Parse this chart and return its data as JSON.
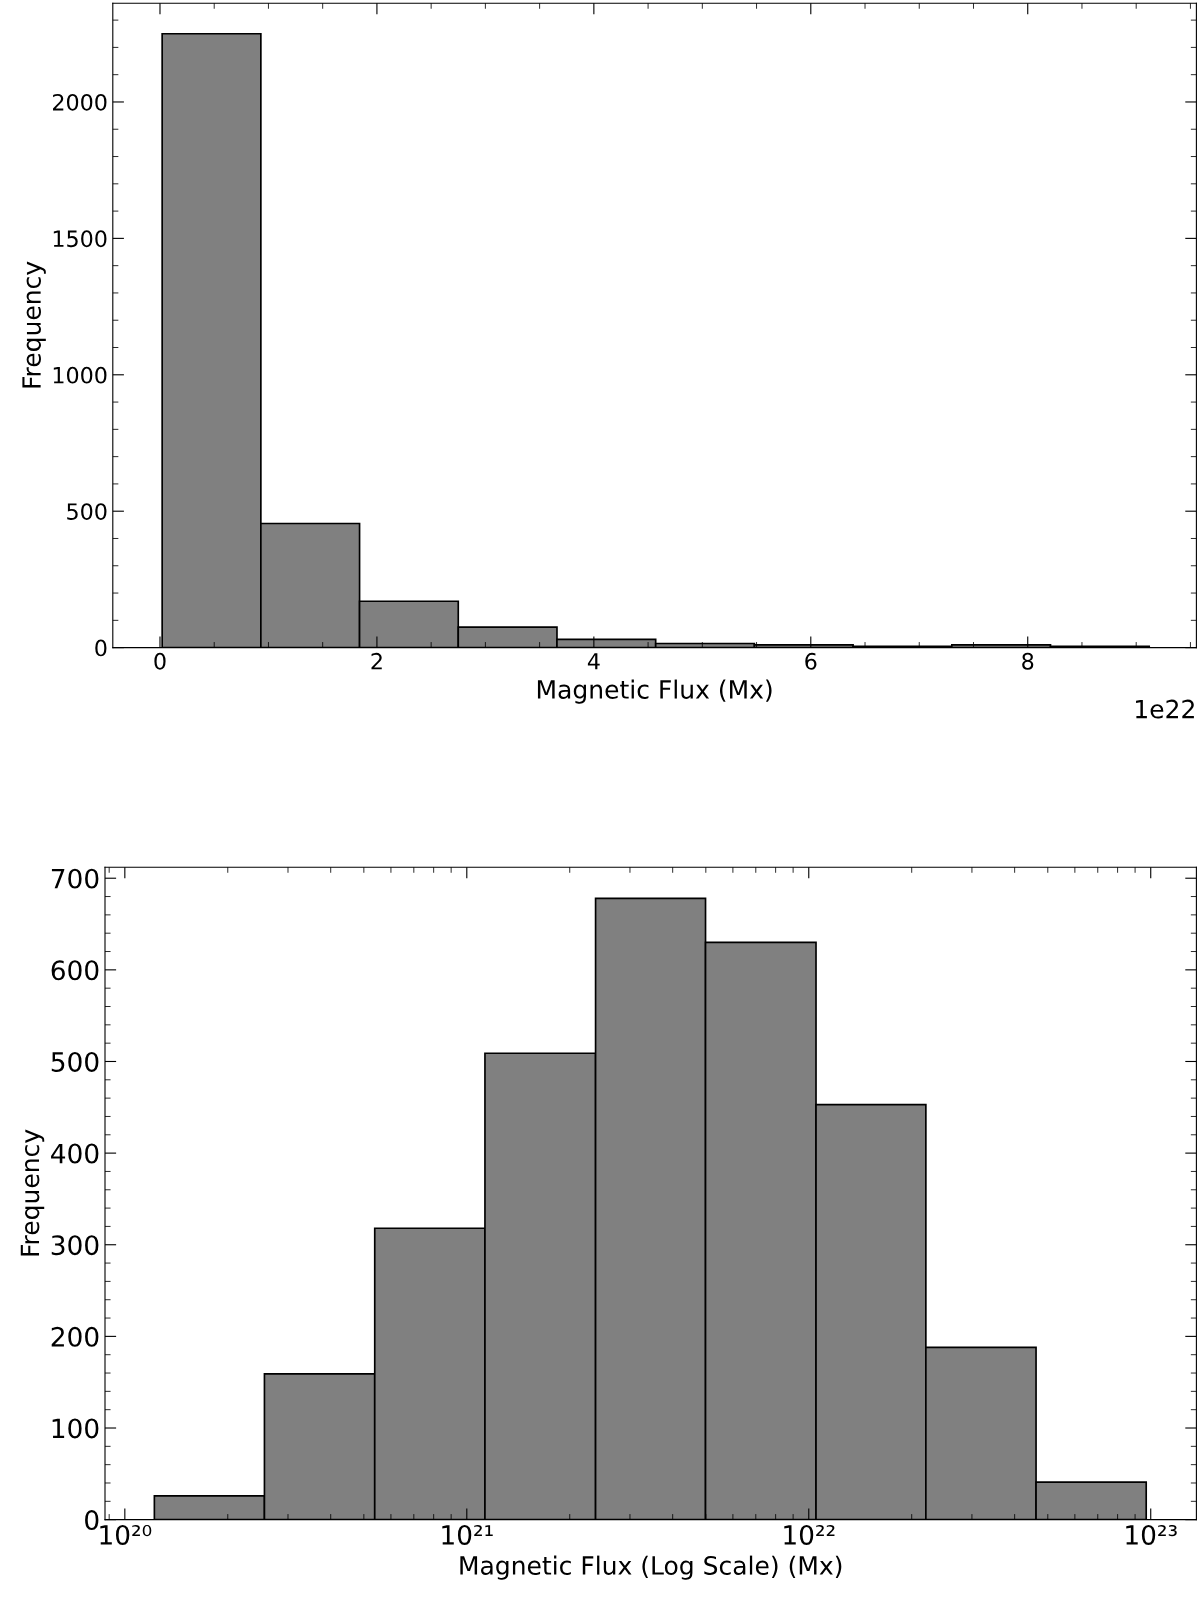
{
  "chart_data": [
    {
      "type": "histogram",
      "xlabel": "Magnetic Flux (Mx)",
      "ylabel": "Frequency",
      "color": "#808080",
      "bins": [
        0.02,
        0.93,
        1.84,
        2.75,
        3.66,
        4.57,
        5.48,
        6.39,
        7.3,
        8.21,
        9.12
      ],
      "values": [
        2250,
        455,
        170,
        75,
        30,
        15,
        10,
        5,
        10,
        5
      ],
      "xlim": [
        -0.435,
        9.555
      ],
      "xticks": [
        0,
        2,
        4,
        6,
        8
      ],
      "ylim": [
        0,
        2362
      ],
      "yticks": [
        0,
        500,
        1000,
        1500,
        2000
      ],
      "annotations": [
        "1e22"
      ]
    },
    {
      "type": "histogram",
      "xlabel": "Magnetic Flux (Log Scale) (Mx)",
      "ylabel": "Frequency",
      "color": "#808080",
      "log": "x",
      "bins": [
        1.22e+20,
        2.56e+20,
        5.38e+20,
        1.13e+21,
        2.38e+21,
        4.99e+21,
        1.05e+22,
        2.2e+22,
        4.62e+22,
        9.7e+22
      ],
      "values": [
        26,
        159,
        318,
        509,
        678,
        630,
        453,
        188,
        41
      ],
      "xlim": [
        8.75e+19,
        1.36e+23
      ],
      "xticks": [
        {
          "value": 1e+20,
          "label": "10²⁰"
        },
        {
          "value": 1e+21,
          "label": "10²¹"
        },
        {
          "value": 1e+22,
          "label": "10²²"
        },
        {
          "value": 1e+23,
          "label": "10²³"
        }
      ],
      "ylim": [
        0,
        712
      ],
      "yticks": [
        0,
        100,
        200,
        300,
        400,
        500,
        600,
        700
      ]
    }
  ]
}
